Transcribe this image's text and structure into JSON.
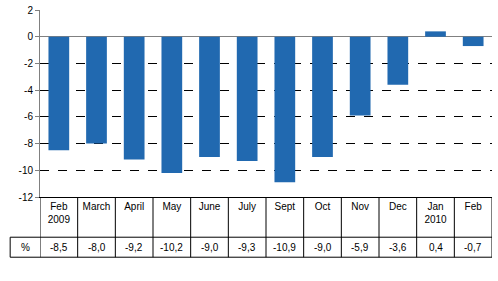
{
  "chart_data": {
    "type": "bar",
    "categories": [
      "Feb 2009",
      "March",
      "April",
      "May",
      "June",
      "July",
      "Sept",
      "Oct",
      "Nov",
      "Dec",
      "Jan 2010",
      "Feb"
    ],
    "values": [
      -8.5,
      -8.0,
      -9.2,
      -10.2,
      -9.0,
      -9.3,
      -10.9,
      -9.0,
      -5.9,
      -3.6,
      0.4,
      -0.7
    ],
    "value_labels": [
      "-8,5",
      "-8,0",
      "-9,2",
      "-10,2",
      "-9,0",
      "-9,3",
      "-10,9",
      "-9,0",
      "-5,9",
      "-3,6",
      "0,4",
      "-0,7"
    ],
    "annotations": [
      "%"
    ],
    "color": "#2169b0",
    "ylim": [
      -12,
      2
    ],
    "yticks": [
      -12,
      -10,
      -8,
      -6,
      -4,
      -2,
      0,
      2
    ],
    "grid": true
  }
}
